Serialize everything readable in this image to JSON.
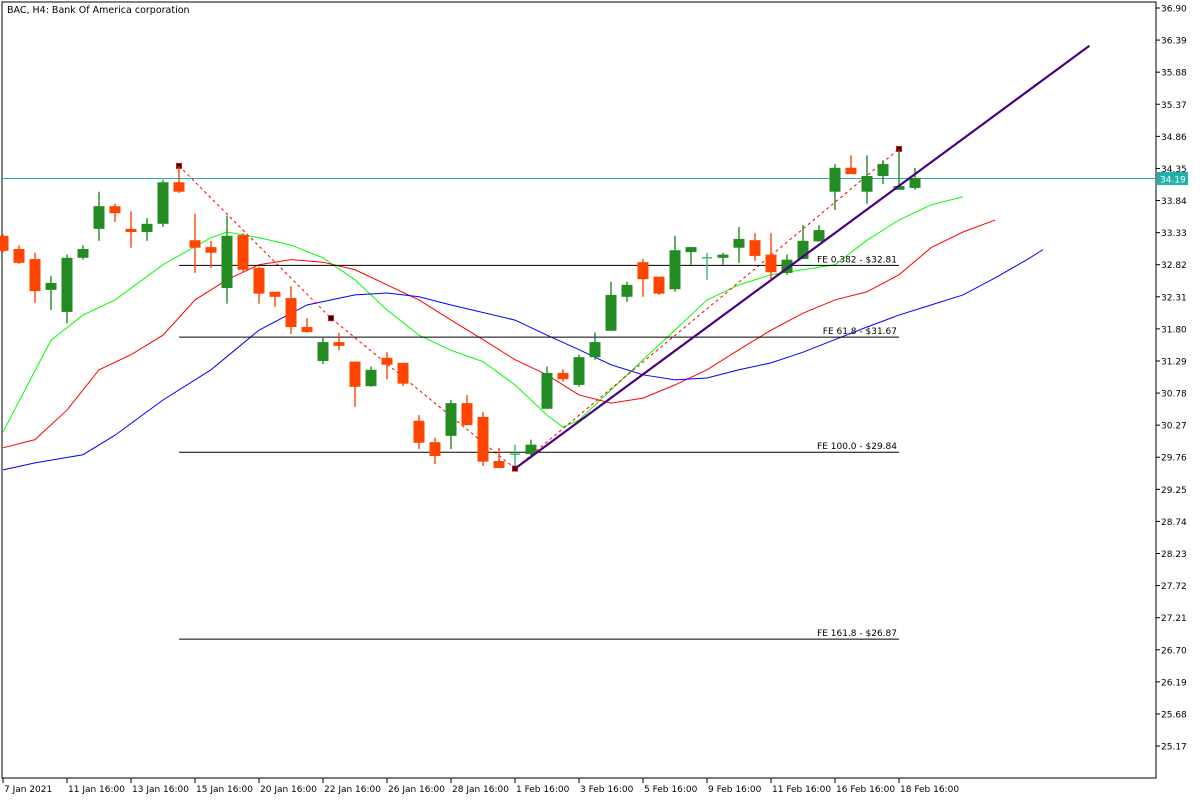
{
  "header": {
    "title": "BAC, H4:  Bank Of America corporation"
  },
  "colors": {
    "bull": "#228b22",
    "bear": "#ff4500",
    "doji": "#3cb371",
    "ma_fast": "#00ff00",
    "ma_mid": "#ff0000",
    "ma_slow": "#0000ff",
    "trend": "#4b0082",
    "price_line": "#20b2aa",
    "fibo": "#ff0000"
  },
  "chart_data": {
    "type": "candlestick",
    "symbol": "BAC",
    "timeframe": "H4",
    "ylim": [
      25.17,
      36.9
    ],
    "y_ticks": [
      "36.90",
      "36.39",
      "35.88",
      "35.37",
      "34.86",
      "34.35",
      "33.84",
      "33.33",
      "32.82",
      "32.31",
      "31.80",
      "31.29",
      "30.78",
      "30.27",
      "29.76",
      "29.25",
      "28.74",
      "28.23",
      "27.72",
      "27.21",
      "26.70",
      "26.19",
      "25.68",
      "25.17"
    ],
    "x_ticks": [
      {
        "index": 0,
        "label": "7 Jan 2021"
      },
      {
        "index": 4,
        "label": "11 Jan 16:00"
      },
      {
        "index": 8,
        "label": "13 Jan 16:00"
      },
      {
        "index": 12,
        "label": "15 Jan 16:00"
      },
      {
        "index": 16,
        "label": "20 Jan 16:00"
      },
      {
        "index": 20,
        "label": "22 Jan 16:00"
      },
      {
        "index": 24,
        "label": "26 Jan 16:00"
      },
      {
        "index": 28,
        "label": "28 Jan 16:00"
      },
      {
        "index": 32,
        "label": "1 Feb 16:00"
      },
      {
        "index": 36,
        "label": "3 Feb 16:00"
      },
      {
        "index": 40,
        "label": "5 Feb 16:00"
      },
      {
        "index": 44,
        "label": "9 Feb 16:00"
      },
      {
        "index": 48,
        "label": "11 Feb 16:00"
      },
      {
        "index": 52,
        "label": "16 Feb 16:00"
      },
      {
        "index": 56,
        "label": "18 Feb 16:00"
      }
    ],
    "candles_ohlc": [
      [
        33.28,
        33.3,
        33.02,
        33.04
      ],
      [
        33.07,
        33.13,
        32.83,
        32.85
      ],
      [
        32.91,
        33.01,
        32.21,
        32.4
      ],
      [
        32.42,
        32.64,
        32.1,
        32.53
      ],
      [
        32.07,
        32.98,
        31.89,
        32.93
      ],
      [
        32.93,
        33.13,
        32.9,
        33.07
      ],
      [
        33.39,
        33.98,
        33.2,
        33.75
      ],
      [
        33.75,
        33.79,
        33.5,
        33.64
      ],
      [
        33.39,
        33.67,
        33.09,
        33.34
      ],
      [
        33.34,
        33.56,
        33.2,
        33.47
      ],
      [
        33.47,
        34.17,
        33.42,
        34.13
      ],
      [
        34.13,
        34.39,
        33.96,
        33.98
      ],
      [
        33.21,
        33.63,
        32.69,
        33.09
      ],
      [
        33.1,
        33.2,
        32.77,
        33.01
      ],
      [
        32.45,
        33.6,
        32.2,
        33.28
      ],
      [
        33.29,
        33.32,
        32.69,
        32.74
      ],
      [
        32.77,
        32.79,
        32.2,
        32.36
      ],
      [
        32.39,
        32.39,
        32.15,
        32.31
      ],
      [
        32.29,
        32.48,
        31.72,
        31.83
      ],
      [
        31.83,
        31.97,
        31.74,
        31.75
      ],
      [
        31.29,
        31.67,
        31.24,
        31.59
      ],
      [
        31.59,
        31.74,
        31.46,
        31.53
      ],
      [
        31.28,
        31.28,
        30.56,
        30.88
      ],
      [
        30.89,
        31.2,
        30.88,
        31.15
      ],
      [
        31.34,
        31.43,
        31.0,
        31.23
      ],
      [
        31.26,
        31.26,
        30.89,
        30.93
      ],
      [
        30.34,
        30.43,
        29.89,
        29.99
      ],
      [
        30.0,
        30.07,
        29.65,
        29.78
      ],
      [
        30.1,
        30.67,
        29.89,
        30.62
      ],
      [
        30.62,
        30.75,
        30.27,
        30.27
      ],
      [
        30.4,
        30.48,
        29.62,
        29.69
      ],
      [
        29.7,
        29.91,
        29.59,
        29.59
      ],
      [
        29.81,
        29.96,
        29.62,
        29.81
      ],
      [
        29.81,
        30.04,
        29.77,
        29.96
      ],
      [
        30.53,
        31.2,
        30.53,
        31.1
      ],
      [
        31.1,
        31.16,
        30.96,
        31.0
      ],
      [
        30.91,
        31.39,
        30.88,
        31.35
      ],
      [
        31.35,
        31.74,
        31.31,
        31.59
      ],
      [
        31.77,
        32.55,
        31.77,
        32.34
      ],
      [
        32.31,
        32.55,
        32.23,
        32.5
      ],
      [
        32.86,
        32.91,
        32.31,
        32.59
      ],
      [
        32.63,
        32.63,
        32.34,
        32.36
      ],
      [
        32.43,
        33.28,
        32.39,
        33.05
      ],
      [
        33.02,
        33.1,
        32.82,
        33.1
      ],
      [
        32.93,
        33.01,
        32.58,
        32.93
      ],
      [
        32.93,
        33.01,
        32.82,
        32.98
      ],
      [
        33.09,
        33.42,
        32.85,
        33.23
      ],
      [
        33.21,
        33.32,
        32.88,
        32.96
      ],
      [
        32.98,
        33.32,
        32.58,
        32.7
      ],
      [
        32.69,
        32.98,
        32.66,
        32.9
      ],
      [
        32.91,
        33.45,
        32.91,
        33.2
      ],
      [
        33.19,
        33.45,
        33.19,
        33.37
      ],
      [
        33.98,
        34.42,
        33.69,
        34.36
      ],
      [
        34.36,
        34.56,
        34.26,
        34.26
      ],
      [
        33.98,
        34.56,
        33.79,
        34.23
      ],
      [
        34.23,
        34.48,
        34.1,
        34.42
      ],
      [
        34.01,
        34.66,
        34.01,
        34.07
      ],
      [
        34.04,
        34.36,
        34.01,
        34.2
      ]
    ],
    "moving_averages": [
      {
        "name": "fast",
        "color": "#00ff00",
        "points": [
          [
            0,
            30.16
          ],
          [
            1.7,
            30.99
          ],
          [
            3,
            31.62
          ],
          [
            5,
            32.02
          ],
          [
            7,
            32.26
          ],
          [
            10,
            32.82
          ],
          [
            13,
            33.25
          ],
          [
            14,
            33.34
          ],
          [
            16,
            33.25
          ],
          [
            18,
            33.13
          ],
          [
            20,
            32.93
          ],
          [
            22,
            32.58
          ],
          [
            24,
            32.1
          ],
          [
            26,
            31.7
          ],
          [
            28,
            31.46
          ],
          [
            30,
            31.28
          ],
          [
            32,
            30.91
          ],
          [
            34,
            30.43
          ],
          [
            35,
            30.24
          ],
          [
            36,
            30.35
          ],
          [
            38,
            30.83
          ],
          [
            40,
            31.31
          ],
          [
            42,
            31.78
          ],
          [
            44,
            32.26
          ],
          [
            46,
            32.5
          ],
          [
            48,
            32.66
          ],
          [
            50,
            32.74
          ],
          [
            52,
            32.82
          ],
          [
            54,
            33.21
          ],
          [
            56,
            33.53
          ],
          [
            58,
            33.77
          ],
          [
            60,
            33.9
          ]
        ]
      },
      {
        "name": "mid",
        "color": "#ff0000",
        "points": [
          [
            0,
            29.91
          ],
          [
            2,
            30.04
          ],
          [
            4,
            30.51
          ],
          [
            6,
            31.15
          ],
          [
            8,
            31.39
          ],
          [
            10,
            31.7
          ],
          [
            12,
            32.26
          ],
          [
            14,
            32.58
          ],
          [
            16,
            32.82
          ],
          [
            18,
            32.9
          ],
          [
            20,
            32.86
          ],
          [
            22,
            32.74
          ],
          [
            24,
            32.5
          ],
          [
            26,
            32.26
          ],
          [
            28,
            31.94
          ],
          [
            30,
            31.63
          ],
          [
            32,
            31.31
          ],
          [
            34,
            31.07
          ],
          [
            36,
            30.75
          ],
          [
            38,
            30.62
          ],
          [
            40,
            30.7
          ],
          [
            42,
            30.91
          ],
          [
            44,
            31.15
          ],
          [
            46,
            31.47
          ],
          [
            48,
            31.78
          ],
          [
            50,
            32.05
          ],
          [
            52,
            32.26
          ],
          [
            54,
            32.39
          ],
          [
            56,
            32.66
          ],
          [
            58,
            33.09
          ],
          [
            60,
            33.34
          ],
          [
            62,
            33.53
          ]
        ]
      },
      {
        "name": "slow",
        "color": "#0000ff",
        "points": [
          [
            0,
            29.56
          ],
          [
            2,
            29.67
          ],
          [
            5,
            29.8
          ],
          [
            7,
            30.11
          ],
          [
            10,
            30.67
          ],
          [
            13,
            31.15
          ],
          [
            16,
            31.78
          ],
          [
            19,
            32.18
          ],
          [
            22,
            32.34
          ],
          [
            24,
            32.37
          ],
          [
            26,
            32.31
          ],
          [
            28,
            32.18
          ],
          [
            32,
            31.94
          ],
          [
            34,
            31.7
          ],
          [
            36,
            31.47
          ],
          [
            38,
            31.23
          ],
          [
            40,
            31.07
          ],
          [
            42,
            30.99
          ],
          [
            44,
            31.02
          ],
          [
            46,
            31.15
          ],
          [
            48,
            31.26
          ],
          [
            50,
            31.43
          ],
          [
            52,
            31.63
          ],
          [
            54,
            31.83
          ],
          [
            56,
            32.02
          ],
          [
            58,
            32.18
          ],
          [
            60,
            32.34
          ],
          [
            62,
            32.61
          ],
          [
            64,
            32.9
          ],
          [
            65,
            33.06
          ]
        ]
      }
    ],
    "fibo_expansion": {
      "points": [
        [
          11,
          34.39
        ],
        [
          20.5,
          31.97
        ],
        [
          32,
          29.58
        ],
        [
          56,
          34.66
        ]
      ],
      "start_index": 11,
      "end_index": 56,
      "levels": [
        {
          "label": "FE 0.382 - $32.81",
          "price": 32.81
        },
        {
          "label": "FE 61.8 - $31.67",
          "price": 31.67
        },
        {
          "label": "FE 100.0 - $29.84",
          "price": 29.84
        },
        {
          "label": "FE 161.8 - $26.87",
          "price": 26.87
        }
      ]
    },
    "trendline": {
      "from": [
        32,
        29.58
      ],
      "to": [
        67.9,
        36.3
      ]
    },
    "current_price": {
      "value": 34.19,
      "label": "34.19"
    }
  }
}
